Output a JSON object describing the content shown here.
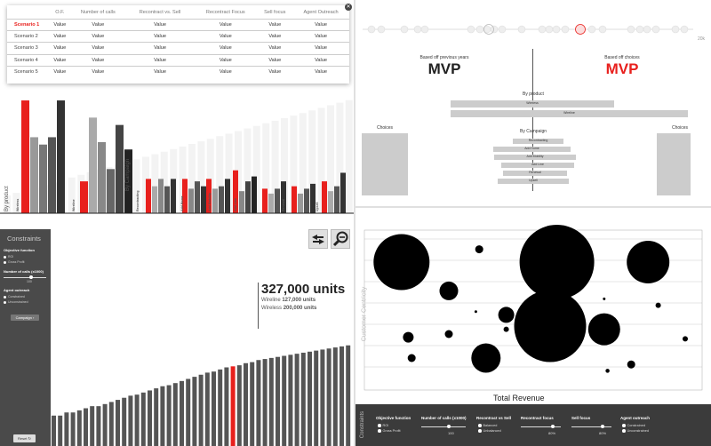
{
  "scenarios": {
    "headers": [
      "O.F.",
      "Number of calls",
      "Recontract vs. Sell",
      "Recontract Focus",
      "Sell focus",
      "Agent Outreach"
    ],
    "rows": [
      {
        "label": "Scenario 1",
        "cells": [
          "Value",
          "Value",
          "Value",
          "Value",
          "Value",
          "Value"
        ]
      },
      {
        "label": "Scenario 2",
        "cells": [
          "Value",
          "Value",
          "Value",
          "Value",
          "Value",
          "Value"
        ]
      },
      {
        "label": "Scenario 3",
        "cells": [
          "Value",
          "Value",
          "Value",
          "Value",
          "Value",
          "Value"
        ]
      },
      {
        "label": "Scenario 4",
        "cells": [
          "Value",
          "Value",
          "Value",
          "Value",
          "Value",
          "Value"
        ]
      },
      {
        "label": "Scenario 5",
        "cells": [
          "Value",
          "Value",
          "Value",
          "Value",
          "Value",
          "Value"
        ]
      }
    ]
  },
  "timeline": {
    "end_label": "20k"
  },
  "mvp": {
    "left_caption": "Based off previous years",
    "left_title": "MVP",
    "right_caption": "Based off choices",
    "right_title": "MVP",
    "by_product": "By product",
    "products": [
      "Wireless",
      "Wireline"
    ],
    "choices_left": "Choices",
    "choices_right": "Choices",
    "by_campaign": "By Campaign",
    "campaigns": [
      "Recontracting",
      "Add Home",
      "Add Mobility",
      "Add Line",
      "Renewal",
      "Upsell"
    ]
  },
  "groups_chart": {
    "by_product": "By product",
    "by_campaign": "By Campaign",
    "labels": [
      "Wireless",
      "Wireline",
      "Recontracting",
      "Add Home",
      "Add Mobility",
      "Add Line",
      "Renewal",
      "Upsell"
    ]
  },
  "constraints": {
    "title": "Constraints",
    "objective_label": "Objective function",
    "objective_options": [
      "ROI",
      "Gross Profit"
    ],
    "calls_label": "Number of calls (x1000)",
    "calls_value": "100",
    "outreach_label": "Agent outreach",
    "outreach_options": [
      "Constrained",
      "Unconstrained"
    ],
    "campaign_button": "Campaign",
    "reset_button": "Reset"
  },
  "units": {
    "headline": "327,000 units",
    "wireline_label": "Wireline",
    "wireline_value": "127,000 units",
    "wireless_label": "Wireless",
    "wireless_value": "200,000 units"
  },
  "scatter": {
    "ylabel": "Customer Centricity",
    "xlabel": "Total Revenue"
  },
  "toolbar": {
    "title": "Constraints",
    "objective_label": "Objective function",
    "objective_options": [
      "ROI",
      "Gross Profit"
    ],
    "calls_label": "Number of calls (x1000)",
    "calls_value": "100",
    "rvs_label": "Recontract vs Sell",
    "rvs_options": [
      "Balanced",
      "Unbalanced"
    ],
    "rf_label": "Recontract focus",
    "rf_value": "80%",
    "sf_label": "Sell focus",
    "sf_value": "80%",
    "ao_label": "Agent outreach",
    "ao_options": [
      "Constrained",
      "Unconstrained"
    ]
  },
  "colors": {
    "accent": "#e8201d",
    "dark": "#3b3b3b"
  },
  "chart_data": [
    {
      "type": "bar",
      "title": "",
      "series": [
        {
          "name": "",
          "values": [
            0.1,
            0.13,
            0.75,
            0.45,
            0.4,
            0.5,
            0.45,
            0.75,
            0.07,
            0.08,
            0.22,
            0.45,
            0.28,
            0.33,
            0.51,
            0.44,
            0.1,
            0.15,
            0.2,
            0.15,
            0.2,
            0.22,
            0.25,
            0.15,
            0.2,
            0.2,
            0.25,
            0.18,
            0.15,
            0.21,
            0.15,
            0.2
          ]
        }
      ],
      "highlight": [
        2,
        9,
        13,
        17,
        20,
        23,
        26,
        30
      ]
    },
    {
      "type": "bar",
      "title": "",
      "x": [
        0,
        1,
        2,
        3,
        4,
        5,
        6,
        7,
        8,
        9,
        10,
        11,
        12,
        13,
        14,
        15,
        16,
        17,
        18,
        19,
        20,
        21,
        22,
        23,
        24,
        25,
        26,
        27,
        28,
        29,
        30,
        31,
        32,
        33,
        34,
        35,
        36,
        37,
        38,
        39,
        40,
        41,
        42,
        43,
        44,
        45,
        46,
        47,
        48,
        49,
        50,
        51,
        52,
        53
      ],
      "values": [
        0.29,
        0.29,
        0.32,
        0.32,
        0.34,
        0.36,
        0.38,
        0.38,
        0.4,
        0.42,
        0.44,
        0.46,
        0.48,
        0.49,
        0.51,
        0.53,
        0.55,
        0.57,
        0.58,
        0.6,
        0.62,
        0.64,
        0.66,
        0.68,
        0.7,
        0.71,
        0.73,
        0.75,
        0.76,
        0.77,
        0.79,
        0.8,
        0.82,
        0.83,
        0.84,
        0.85,
        0.86,
        0.87,
        0.88,
        0.89,
        0.9,
        0.91,
        0.92,
        0.93,
        0.94,
        0.95,
        0.96,
        0.96,
        0.96,
        0.96,
        0.96,
        0.96,
        0.96,
        0.96
      ],
      "highlight": [
        28
      ]
    },
    {
      "type": "scatter",
      "xlabel": "Total Revenue",
      "ylabel": "Customer Centricity",
      "points": [
        {
          "x": 0.11,
          "y": 0.8,
          "r": 0.21
        },
        {
          "x": 0.34,
          "y": 0.88,
          "r": 0.03
        },
        {
          "x": 0.57,
          "y": 0.8,
          "r": 0.28
        },
        {
          "x": 0.84,
          "y": 0.8,
          "r": 0.16
        },
        {
          "x": 0.25,
          "y": 0.62,
          "r": 0.07
        },
        {
          "x": 0.42,
          "y": 0.47,
          "r": 0.06
        },
        {
          "x": 0.42,
          "y": 0.38,
          "r": 0.02
        },
        {
          "x": 0.55,
          "y": 0.4,
          "r": 0.27
        },
        {
          "x": 0.36,
          "y": 0.2,
          "r": 0.11
        },
        {
          "x": 0.71,
          "y": 0.38,
          "r": 0.12
        },
        {
          "x": 0.13,
          "y": 0.33,
          "r": 0.04
        },
        {
          "x": 0.14,
          "y": 0.2,
          "r": 0.03
        },
        {
          "x": 0.25,
          "y": 0.35,
          "r": 0.03
        },
        {
          "x": 0.49,
          "y": 0.66,
          "r": 0.015
        },
        {
          "x": 0.87,
          "y": 0.53,
          "r": 0.02
        },
        {
          "x": 0.95,
          "y": 0.32,
          "r": 0.02
        },
        {
          "x": 0.79,
          "y": 0.16,
          "r": 0.03
        },
        {
          "x": 0.72,
          "y": 0.12,
          "r": 0.015
        },
        {
          "x": 0.71,
          "y": 0.57,
          "r": 0.01
        },
        {
          "x": 0.33,
          "y": 0.49,
          "r": 0.01
        }
      ]
    }
  ]
}
